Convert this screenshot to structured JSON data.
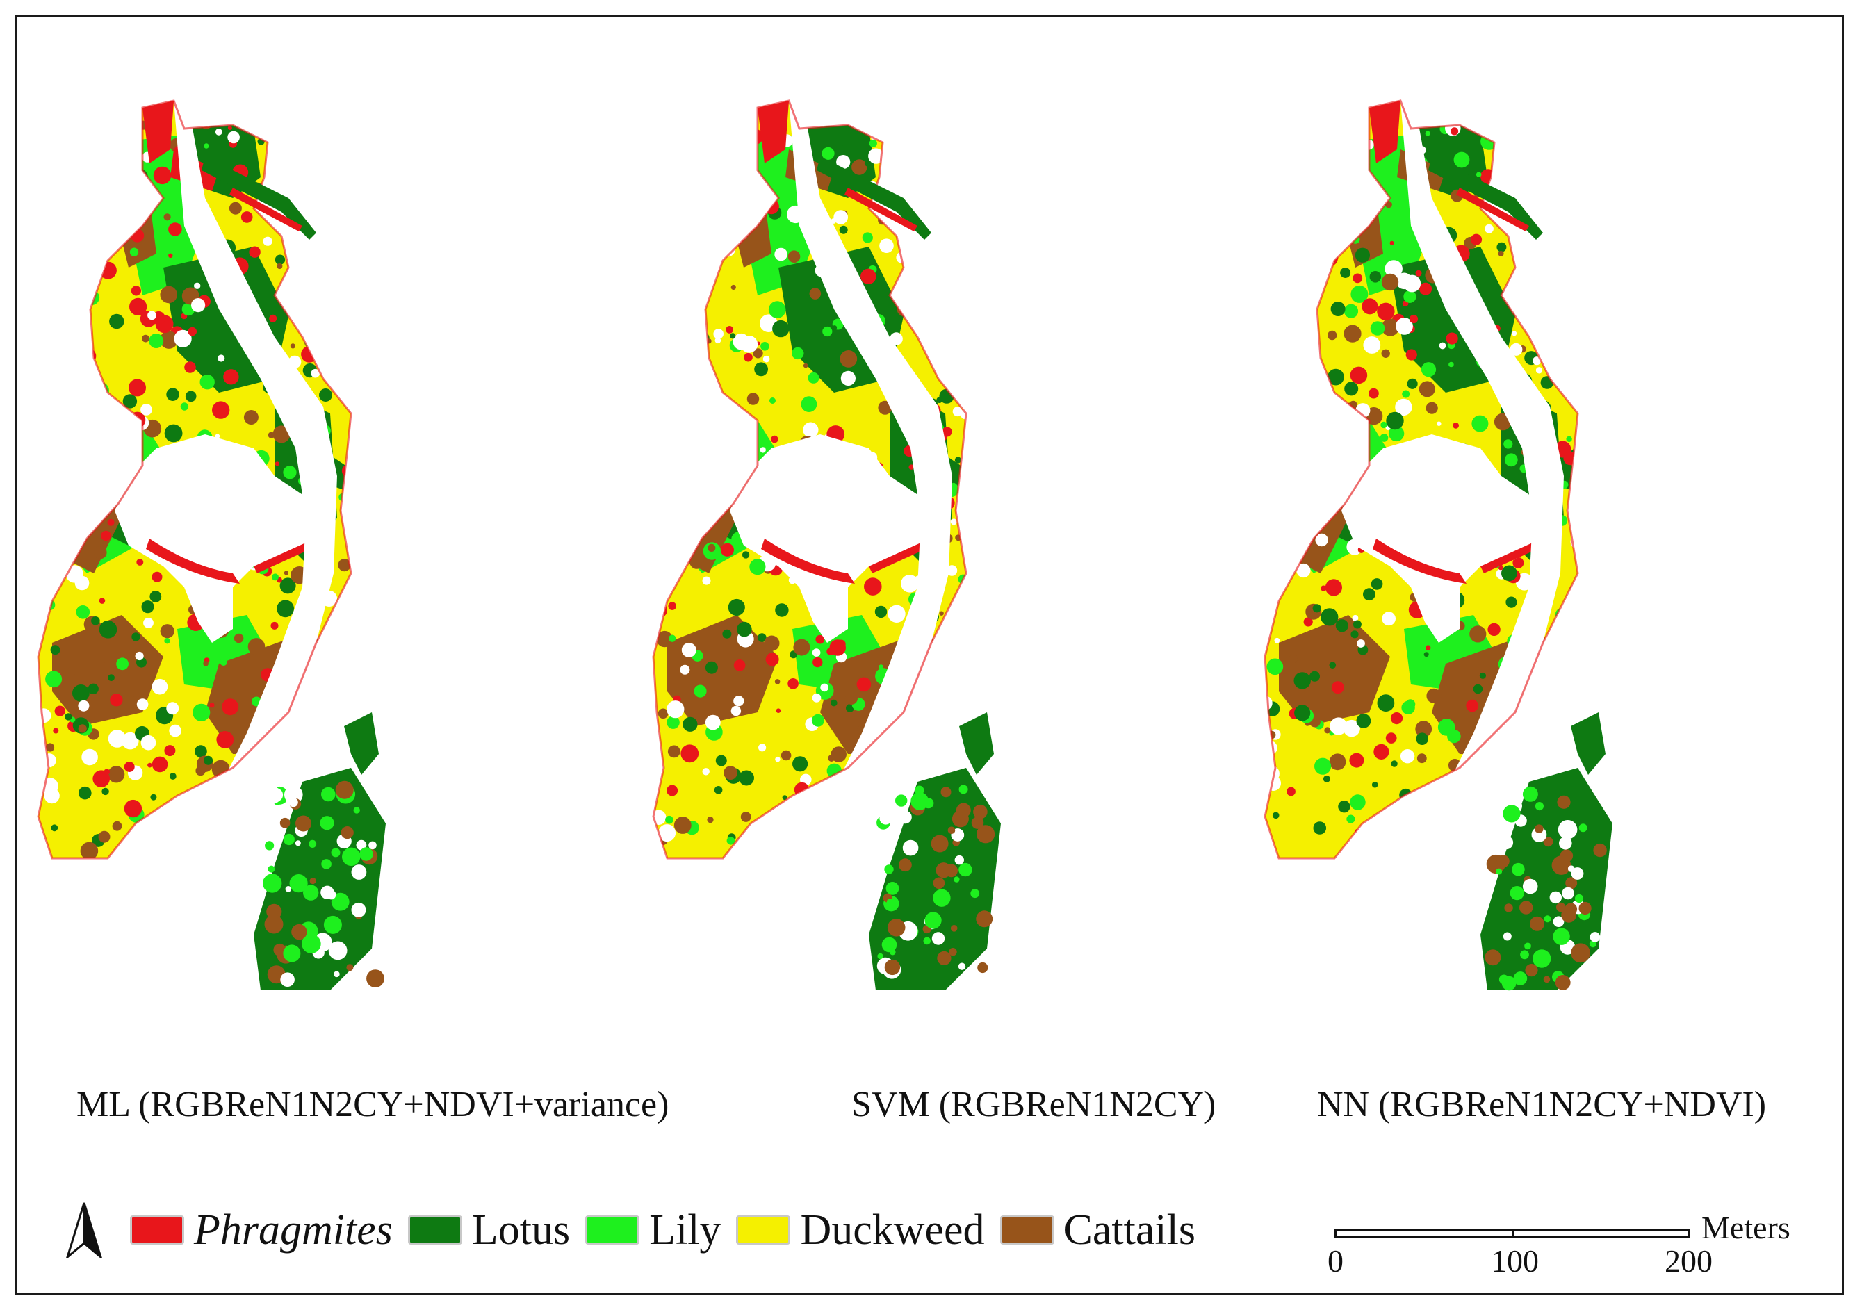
{
  "panels": [
    {
      "id": "ml",
      "caption": "ML (RGBReN1N2CY+NDVI+variance)"
    },
    {
      "id": "svm",
      "caption": "SVM (RGBReN1N2CY)"
    },
    {
      "id": "nn",
      "caption": "NN (RGBReN1N2CY+NDVI)"
    }
  ],
  "legend": {
    "items": [
      {
        "label": "Phragmites",
        "color": "#e8161b",
        "italic": true
      },
      {
        "label": "Lotus",
        "color": "#0e7a12",
        "italic": false
      },
      {
        "label": "Lily",
        "color": "#1ef01e",
        "italic": false
      },
      {
        "label": "Duckweed",
        "color": "#f5f000",
        "italic": false
      },
      {
        "label": "Cattails",
        "color": "#97541a",
        "italic": false
      }
    ]
  },
  "scalebar": {
    "units": "Meters",
    "ticks": [
      "0",
      "100",
      "200"
    ]
  },
  "colors": {
    "phragmites": "#e8161b",
    "lotus": "#0e7a12",
    "lily": "#1ef01e",
    "duckweed": "#f5f000",
    "cattails": "#97541a"
  }
}
